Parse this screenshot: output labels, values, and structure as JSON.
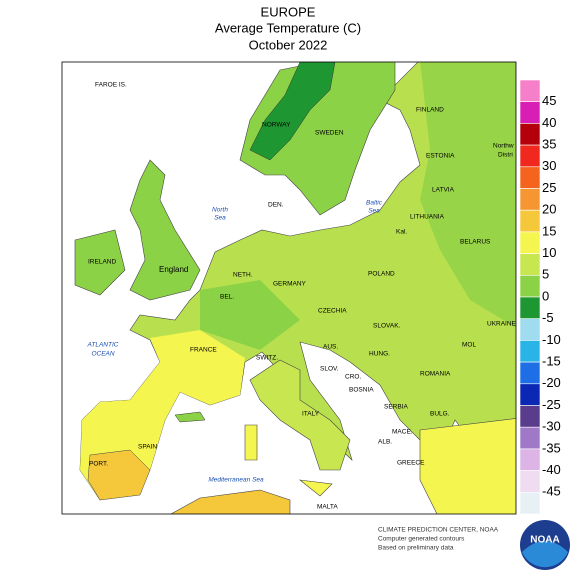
{
  "header": {
    "title": "EUROPE",
    "subtitle": "Average Temperature (C)",
    "period": "October 2022"
  },
  "places": {
    "faroe": "FAROE IS.",
    "norway": "NORWAY",
    "sweden": "SWEDEN",
    "finland": "FINLAND",
    "estonia": "ESTONIA",
    "northwest_1": "Northw",
    "northwest_2": "Distri",
    "latvia": "LATVIA",
    "lithuania": "LITHUANIA",
    "kal": "Kal.",
    "belarus": "BELARUS",
    "ukraine": "UKRAINE",
    "moldova": "MOL",
    "romania": "ROMANIA",
    "bulgaria": "BULG.",
    "serbia": "SERBIA",
    "macedonia": "MACE.",
    "albania": "ALB.",
    "greece": "GREECE",
    "denmark": "DEN.",
    "ireland": "IRELAND",
    "england": "England",
    "netherlands": "NETH.",
    "belgium": "BEL.",
    "germany": "GERMANY",
    "poland": "POLAND",
    "czechia": "CZECHIA",
    "slovakia": "SLOVAK.",
    "austria": "AUS.",
    "hungary": "HUNG.",
    "switzerland": "SWITZ.",
    "slovenia": "SLOV.",
    "croatia": "CRO.",
    "bosnia": "BOSNIA",
    "france": "FRANCE",
    "italy": "ITALY",
    "spain": "SPAIN",
    "portugal": "PORT.",
    "malta": "MALTA"
  },
  "seas": {
    "north_1": "North",
    "north_2": "Sea",
    "baltic_1": "Baltic",
    "baltic_2": "Sea",
    "atlantic_1": "ATLANTIC",
    "atlantic_2": "OCEAN",
    "med": "Mediterranean Sea"
  },
  "legend": {
    "labels": [
      45,
      40,
      35,
      30,
      25,
      20,
      15,
      10,
      5,
      0,
      -5,
      -10,
      -15,
      -20,
      -25,
      -30,
      -35,
      -40,
      -45
    ],
    "colors": [
      "#f57fc8",
      "#d81eb4",
      "#b4000a",
      "#f0281e",
      "#f5641e",
      "#f59632",
      "#f5c83c",
      "#f5f550",
      "#c8e650",
      "#8cd246",
      "#1e9632",
      "#a0dcf0",
      "#28b4e6",
      "#1e6ee6",
      "#0a28b4",
      "#5a3c8c",
      "#a078c8",
      "#dcb4e6",
      "#f0dcf0",
      "#e6f0f5"
    ]
  },
  "credits": {
    "line1": "CLIMATE PREDICTION CENTER, NOAA",
    "line2": "Computer generated contours",
    "line3": "Based on preliminary data",
    "logo": "NOAA"
  }
}
